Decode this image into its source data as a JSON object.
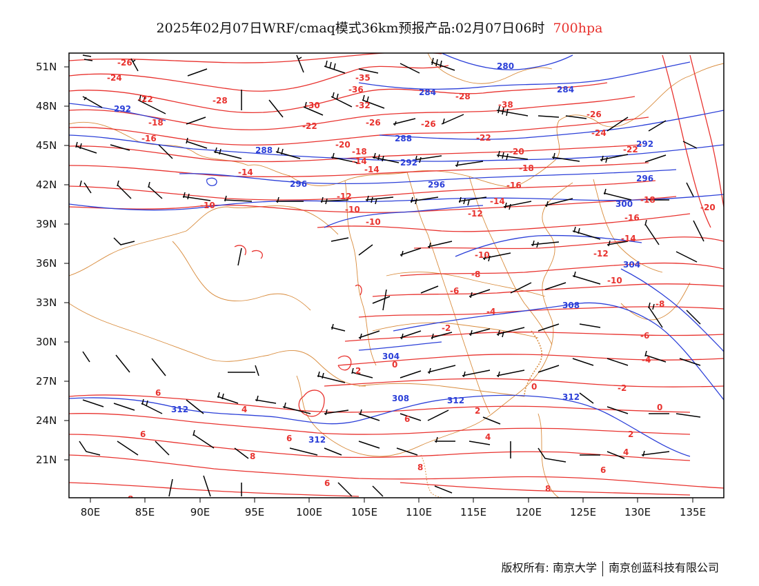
{
  "title": {
    "main": "2025年02月07日WRF/cmaq模式36km预报产品:02月07日06时",
    "level": "700hpa"
  },
  "axes": {
    "lat_labels": [
      "51N",
      "48N",
      "45N",
      "42N",
      "39N",
      "36N",
      "33N",
      "30N",
      "27N",
      "24N",
      "21N"
    ],
    "lon_labels": [
      "80E",
      "85E",
      "90E",
      "95E",
      "100E",
      "105E",
      "110E",
      "115E",
      "120E",
      "125E",
      "130E",
      "135E"
    ]
  },
  "colors": {
    "temperature": "#e8322e",
    "theta": "#2b3fd8",
    "border": "#d88a3a",
    "wind": "#000000",
    "level_title": "#e8322e"
  },
  "legend_note": "contours: temperature (red), potential temperature (blue); wind barbs (black)",
  "footer": {
    "copyright": "版权所有: 南京大学",
    "company": "南京创蓝科技有限公司"
  },
  "map_labels": {
    "temperature": [
      "-26",
      "-24",
      "-28",
      "-22",
      "-18",
      "-16",
      "-30",
      "-32",
      "-26",
      "-22",
      "-20",
      "-18",
      "-14",
      "-12",
      "-10",
      "-10",
      "-8",
      "-6",
      "-4",
      "-2",
      "0",
      "2",
      "4",
      "6",
      "8",
      "-16",
      "-14",
      "-12",
      "-10",
      "-20",
      "-22",
      "-24",
      "-26",
      "-30",
      "-28",
      "-38",
      "-36",
      "-35",
      "-18",
      "-16",
      "-14",
      "-12",
      "-10",
      "-8",
      "-6",
      "-4",
      "-2",
      "0",
      "2",
      "4",
      "6",
      "8",
      "-8",
      "-6",
      "-2",
      "0",
      "2",
      "4",
      "6",
      "8",
      "6",
      "4",
      "2"
    ],
    "theta": [
      "280",
      "284",
      "284",
      "292",
      "288",
      "288",
      "292",
      "296",
      "296",
      "296",
      "300",
      "304",
      "304",
      "308",
      "312",
      "308",
      "312",
      "312",
      "292"
    ]
  }
}
